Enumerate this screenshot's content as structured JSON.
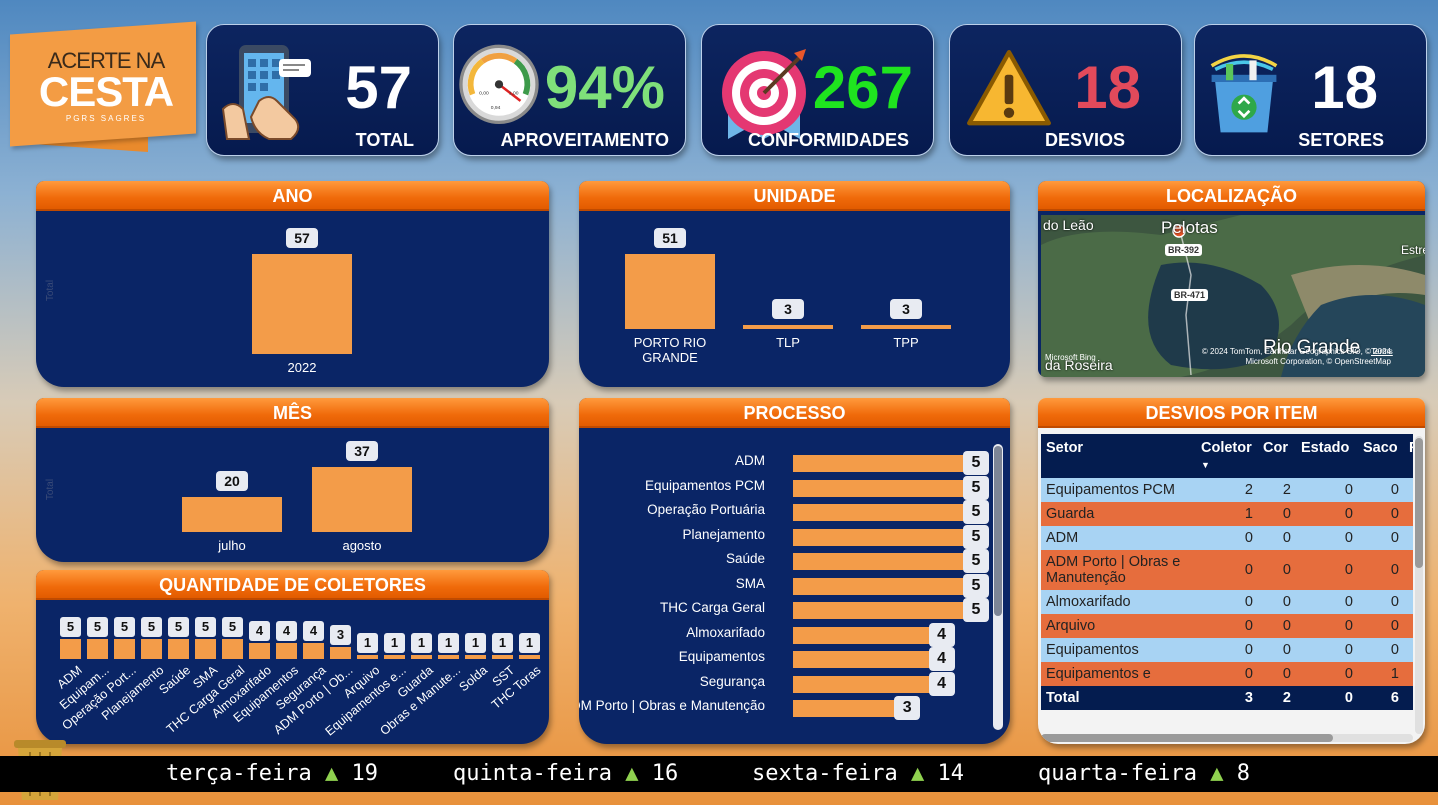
{
  "logo": {
    "line1": "ACERTE NA",
    "line2": "CESTA",
    "line3": "PGRS SAGRES"
  },
  "kpis": [
    {
      "value": "57",
      "label": "TOTAL",
      "color": "#ffffff",
      "icon": "phone-touch-icon"
    },
    {
      "value": "94%",
      "label": "APROVEITAMENTO",
      "color": "#7fe07a",
      "icon": "gauge-icon",
      "gauge": {
        "min": "0,00",
        "max": "1,00",
        "current": "0,94"
      }
    },
    {
      "value": "267",
      "label": "CONFORMIDADES",
      "color": "#1fe41f",
      "icon": "target-icon"
    },
    {
      "value": "18",
      "label": "DESVIOS",
      "color": "#e24a5b",
      "icon": "warning-icon"
    },
    {
      "value": "18",
      "label": "SETORES",
      "color": "#ffffff",
      "icon": "recycle-bin-icon"
    }
  ],
  "ano": {
    "title": "ANO",
    "ytitle": "Total"
  },
  "mes": {
    "title": "MÊS",
    "ytitle": "Total"
  },
  "unidade": {
    "title": "UNIDADE"
  },
  "localizacao": {
    "title": "LOCALIZAÇÃO",
    "places": [
      "do Leão",
      "Pelotas",
      "Estre",
      "Rio Grande",
      "da Roseira"
    ],
    "roads": [
      "BR-392",
      "BR-471"
    ],
    "attribution": "© 2024 TomTom, Earthstar Geographics SIO, © 2024 Microsoft Corporation, © OpenStreetMap",
    "terms": "Terms",
    "bing": "Microsoft Bing"
  },
  "processo": {
    "title": "PROCESSO"
  },
  "coletores": {
    "title": "QUANTIDADE DE COLETORES"
  },
  "chart_data": [
    {
      "type": "bar",
      "title": "ANO",
      "categories": [
        "2022"
      ],
      "values": [
        57
      ],
      "ylabel": "Total"
    },
    {
      "type": "bar",
      "title": "MÊS",
      "categories": [
        "julho",
        "agosto"
      ],
      "values": [
        20,
        37
      ],
      "ylabel": "Total"
    },
    {
      "type": "bar",
      "title": "UNIDADE",
      "categories": [
        "PORTO RIO GRANDE",
        "TLP",
        "TPP"
      ],
      "values": [
        51,
        3,
        3
      ]
    },
    {
      "type": "bar",
      "orientation": "horizontal",
      "title": "PROCESSO",
      "categories": [
        "ADM",
        "Equipamentos PCM",
        "Operação Portuária",
        "Planejamento",
        "Saúde",
        "SMA",
        "THC Carga Geral",
        "Almoxarifado",
        "Equipamentos",
        "Segurança",
        "ADM Porto | Obras e Manutenção"
      ],
      "values": [
        5,
        5,
        5,
        5,
        5,
        5,
        5,
        4,
        4,
        4,
        3
      ]
    },
    {
      "type": "bar",
      "title": "QUANTIDADE DE COLETORES",
      "categories": [
        "ADM",
        "Equipam...",
        "Operação Port...",
        "Planejamento",
        "Saúde",
        "SMA",
        "THC Carga Geral",
        "Almoxarifado",
        "Equipamentos",
        "Segurança",
        "ADM Porto | Ob...",
        "Arquivo",
        "Equipamentos e...",
        "Guarda",
        "Obras e Manute...",
        "Solda",
        "SST",
        "THC Toras"
      ],
      "values": [
        5,
        5,
        5,
        5,
        5,
        5,
        5,
        4,
        4,
        4,
        3,
        1,
        1,
        1,
        1,
        1,
        1,
        1
      ]
    }
  ],
  "desvios": {
    "title": "DESVIOS POR ITEM",
    "columns": [
      "Setor",
      "Coletor",
      "Cor",
      "Estado",
      "Saco",
      "R"
    ],
    "rows": [
      {
        "setor": "Equipamentos PCM",
        "vals": [
          "2",
          "2",
          "0",
          "0"
        ]
      },
      {
        "setor": "Guarda",
        "vals": [
          "1",
          "0",
          "0",
          "0"
        ]
      },
      {
        "setor": "ADM",
        "vals": [
          "0",
          "0",
          "0",
          "0"
        ]
      },
      {
        "setor": "ADM Porto | Obras e Manutenção",
        "vals": [
          "0",
          "0",
          "0",
          "0"
        ]
      },
      {
        "setor": "Almoxarifado",
        "vals": [
          "0",
          "0",
          "0",
          "0"
        ]
      },
      {
        "setor": "Arquivo",
        "vals": [
          "0",
          "0",
          "0",
          "0"
        ]
      },
      {
        "setor": "Equipamentos",
        "vals": [
          "0",
          "0",
          "0",
          "0"
        ]
      },
      {
        "setor": "Equipamentos e",
        "vals": [
          "0",
          "0",
          "0",
          "1"
        ]
      }
    ],
    "total": {
      "label": "Total",
      "vals": [
        "3",
        "2",
        "0",
        "6"
      ]
    }
  },
  "ticker": [
    {
      "day": "terça-feira",
      "value": "19"
    },
    {
      "day": "quinta-feira",
      "value": "16"
    },
    {
      "day": "sexta-feira",
      "value": "14"
    },
    {
      "day": "quarta-feira",
      "value": "8"
    }
  ]
}
